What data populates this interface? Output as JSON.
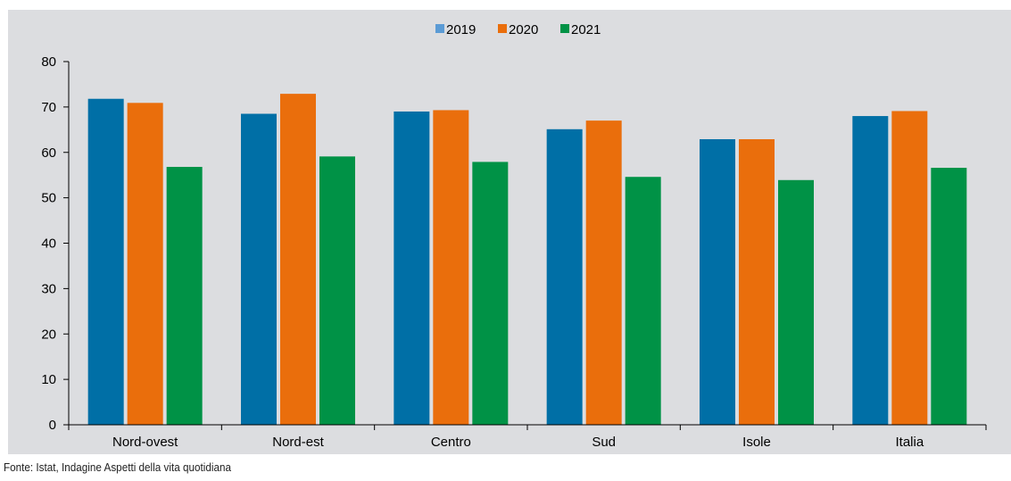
{
  "chart_data": {
    "type": "bar",
    "categories": [
      "Nord-ovest",
      "Nord-est",
      "Centro",
      "Sud",
      "Isole",
      "Italia"
    ],
    "series": [
      {
        "name": "2019",
        "color": "#006fa6",
        "values": [
          71.8,
          68.5,
          69.0,
          65.1,
          62.9,
          68.0
        ]
      },
      {
        "name": "2020",
        "color": "#ea6e0c",
        "values": [
          70.9,
          72.9,
          69.3,
          67.0,
          62.9,
          69.1
        ]
      },
      {
        "name": "2021",
        "color": "#009246",
        "values": [
          56.8,
          59.1,
          57.9,
          54.6,
          53.9,
          56.6
        ]
      }
    ],
    "ylim": [
      0,
      80
    ],
    "yticks": [
      0,
      10,
      20,
      30,
      40,
      50,
      60,
      70,
      80
    ],
    "grid": false,
    "legend_position": "top-center",
    "legend_swatch_2019_color": "#5b9bd5",
    "source": "Fonte: Istat, Indagine Aspetti della vita quotidiana"
  }
}
